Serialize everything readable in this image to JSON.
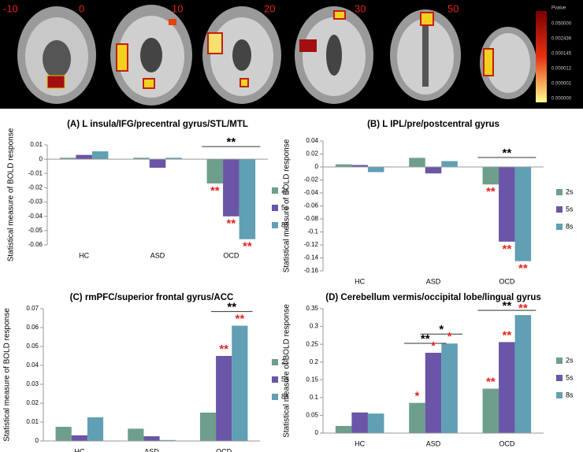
{
  "brain_panel": {
    "slice_labels": [
      "-10",
      "0",
      "10",
      "20",
      "30",
      "50"
    ],
    "colorbar_title": "Pvalue",
    "colorbar_labels": [
      "0.050000",
      "0.002436",
      "0.000145",
      "0.000012",
      "0.000001",
      "0.000000"
    ]
  },
  "chart_data": [
    {
      "type": "bar",
      "title": "(A) L insula/IFG/precentral gyrus/STL/MTL",
      "y_label": "Statistical measure of BOLD response",
      "categories": [
        "HC",
        "ASD",
        "OCD"
      ],
      "series": [
        {
          "name": "2s",
          "color": "#6e9e8c",
          "values": [
            0.001,
            0.001,
            -0.017
          ]
        },
        {
          "name": "5s",
          "color": "#6a55a6",
          "values": [
            0.003,
            -0.006,
            -0.04
          ]
        },
        {
          "name": "8s",
          "color": "#609fb4",
          "values": [
            0.0055,
            0.001,
            -0.056
          ]
        }
      ],
      "ylim": [
        -0.06,
        0.01
      ],
      "yticks": [
        0.01,
        0,
        -0.01,
        -0.02,
        -0.03,
        -0.04,
        -0.05,
        -0.06
      ],
      "annotations": [
        {
          "text": "**",
          "color": "#000000"
        },
        {
          "text": "**",
          "color": "#e8231f"
        },
        {
          "text": "**",
          "color": "#e8231f"
        },
        {
          "text": "**",
          "color": "#e8231f"
        }
      ]
    },
    {
      "type": "bar",
      "title": "(B) L IPL/pre/postcentral gyrus",
      "y_label": "Statistical measure of BOLD response",
      "categories": [
        "HC",
        "ASD",
        "OCD"
      ],
      "series": [
        {
          "name": "2s",
          "color": "#6e9e8c",
          "values": [
            0.004,
            0.014,
            -0.027
          ]
        },
        {
          "name": "5s",
          "color": "#6a55a6",
          "values": [
            0.003,
            -0.01,
            -0.115
          ]
        },
        {
          "name": "8s",
          "color": "#609fb4",
          "values": [
            -0.008,
            0.009,
            -0.145
          ]
        }
      ],
      "ylim": [
        -0.16,
        0.04
      ],
      "yticks": [
        0.04,
        0.02,
        0,
        -0.02,
        -0.04,
        -0.06,
        -0.08,
        -0.1,
        -0.12,
        -0.14,
        -0.16
      ],
      "annotations": [
        {
          "text": "**",
          "color": "#000000"
        },
        {
          "text": "**",
          "color": "#e8231f"
        },
        {
          "text": "**",
          "color": "#e8231f"
        },
        {
          "text": "**",
          "color": "#e8231f"
        }
      ]
    },
    {
      "type": "bar",
      "title": "(C) rmPFC/superior frontal gyrus/ACC",
      "y_label": "Statistical measure of BOLD response",
      "categories": [
        "HC",
        "ASD",
        "OCD"
      ],
      "series": [
        {
          "name": "2s",
          "color": "#6e9e8c",
          "values": [
            0.0075,
            0.0065,
            0.015
          ]
        },
        {
          "name": "5s",
          "color": "#6a55a6",
          "values": [
            0.003,
            0.0025,
            0.045
          ]
        },
        {
          "name": "8s",
          "color": "#609fb4",
          "values": [
            0.0125,
            0.0005,
            0.061
          ]
        }
      ],
      "ylim": [
        0,
        0.07
      ],
      "yticks": [
        0,
        0.01,
        0.02,
        0.03,
        0.04,
        0.05,
        0.06,
        0.07
      ],
      "annotations": [
        {
          "text": "**",
          "color": "#000000"
        },
        {
          "text": "**",
          "color": "#e8231f"
        },
        {
          "text": "**",
          "color": "#e8231f"
        }
      ]
    },
    {
      "type": "bar",
      "title": "(D) Cerebellum vermis/occipital lobe/lingual gyrus",
      "y_label": "Statistical measure of BOLD response",
      "categories": [
        "HC",
        "ASD",
        "OCD"
      ],
      "series": [
        {
          "name": "2s",
          "color": "#6e9e8c",
          "values": [
            0.02,
            0.085,
            0.125
          ]
        },
        {
          "name": "5s",
          "color": "#6a55a6",
          "values": [
            0.058,
            0.226,
            0.256
          ]
        },
        {
          "name": "8s",
          "color": "#609fb4",
          "values": [
            0.055,
            0.252,
            0.332
          ]
        }
      ],
      "ylim": [
        0,
        0.35
      ],
      "yticks": [
        0,
        0.05,
        0.1,
        0.15,
        0.2,
        0.25,
        0.3,
        0.35
      ],
      "annotations": [
        {
          "text": "**",
          "color": "#000000"
        },
        {
          "text": "*",
          "color": "#000000"
        },
        {
          "text": "**",
          "color": "#000000"
        },
        {
          "text": "*",
          "color": "#e8231f"
        },
        {
          "text": "*",
          "color": "#e8231f"
        },
        {
          "text": "*",
          "color": "#e8231f"
        },
        {
          "text": "**",
          "color": "#e8231f"
        },
        {
          "text": "**",
          "color": "#e8231f"
        },
        {
          "text": "**",
          "color": "#e8231f"
        }
      ]
    }
  ]
}
